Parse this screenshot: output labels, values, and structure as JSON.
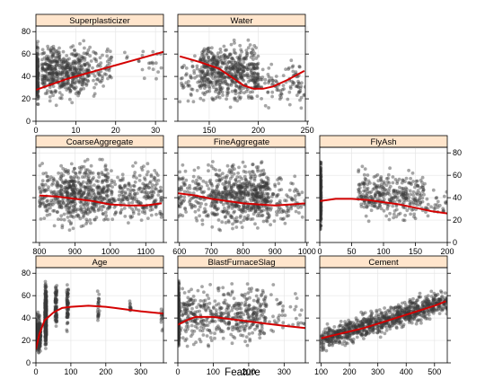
{
  "chart_data": {
    "type": "scatter",
    "xlabel": "Feature",
    "panels": [
      {
        "name": "Superplasticizer",
        "xlim": [
          0,
          32
        ],
        "ylim": [
          0,
          85
        ],
        "xticks": [
          0,
          10,
          20,
          30
        ],
        "yticks": [
          0,
          20,
          40,
          60,
          80
        ],
        "clusters": [
          {
            "x": [
              0,
              0.6
            ],
            "y": [
              2,
              80
            ],
            "n": 170
          },
          {
            "x": [
              1.5,
              12
            ],
            "y": [
              8,
              80
            ],
            "n": 430
          },
          {
            "x": [
              12,
              19
            ],
            "y": [
              15,
              80
            ],
            "n": 100
          },
          {
            "x": [
              22,
              32
            ],
            "y": [
              30,
              76
            ],
            "n": 22
          }
        ],
        "smooth": {
          "x": [
            0,
            4,
            8,
            12,
            16,
            20,
            24,
            28,
            32
          ],
          "y": [
            28,
            33,
            38,
            42,
            46,
            50,
            54,
            58,
            62
          ]
        }
      },
      {
        "name": "Water",
        "xlim": [
          118,
          248
        ],
        "ylim": [
          0,
          85
        ],
        "xticks": [
          150,
          200,
          250
        ],
        "yticks": [],
        "clusters": [
          {
            "x": [
              120,
              140
            ],
            "y": [
              5,
              70
            ],
            "n": 40
          },
          {
            "x": [
              140,
              200
            ],
            "y": [
              5,
              82
            ],
            "n": 560
          },
          {
            "x": [
              200,
              248
            ],
            "y": [
              5,
              62
            ],
            "n": 100
          }
        ],
        "smooth": {
          "x": [
            120,
            140,
            160,
            175,
            185,
            195,
            205,
            215,
            230,
            247
          ],
          "y": [
            58,
            53,
            47,
            38,
            32,
            29,
            29,
            31,
            37,
            45
          ]
        }
      },
      {
        "name": "CoarseAggregate",
        "xlim": [
          790,
          1150
        ],
        "ylim": [
          0,
          85
        ],
        "xticks": [
          800,
          900,
          1000,
          1100
        ],
        "yticks": [],
        "clusters": [
          {
            "x": [
              800,
              860
            ],
            "y": [
              5,
              80
            ],
            "n": 110
          },
          {
            "x": [
              860,
              1000
            ],
            "y": [
              3,
              82
            ],
            "n": 450
          },
          {
            "x": [
              1000,
              1145
            ],
            "y": [
              5,
              80
            ],
            "n": 230
          }
        ],
        "smooth": {
          "x": [
            800,
            850,
            900,
            950,
            1000,
            1050,
            1100,
            1145
          ],
          "y": [
            42,
            41,
            39,
            37,
            34,
            33,
            33,
            35
          ]
        }
      },
      {
        "name": "FineAggregate",
        "xlim": [
          595,
          995
        ],
        "ylim": [
          0,
          85
        ],
        "xticks": [
          600,
          700,
          800,
          900,
          1000
        ],
        "yticks": [],
        "clusters": [
          {
            "x": [
              595,
              700
            ],
            "y": [
              5,
              80
            ],
            "n": 130
          },
          {
            "x": [
              700,
              880
            ],
            "y": [
              3,
              82
            ],
            "n": 560
          },
          {
            "x": [
              880,
              995
            ],
            "y": [
              5,
              70
            ],
            "n": 90
          }
        ],
        "smooth": {
          "x": [
            595,
            650,
            700,
            750,
            800,
            850,
            900,
            950,
            995
          ],
          "y": [
            44,
            42,
            39,
            37,
            35,
            34,
            33,
            34,
            35
          ]
        }
      },
      {
        "name": "FlyAsh",
        "xlim": [
          0,
          200
        ],
        "ylim": [
          0,
          85
        ],
        "xticks": [
          0,
          50,
          100,
          150,
          200
        ],
        "yticks": [
          0,
          20,
          40,
          60,
          80
        ],
        "clusters": [
          {
            "x": [
              0,
              2
            ],
            "y": [
              2,
              82
            ],
            "n": 470
          },
          {
            "x": [
              60,
              165
            ],
            "y": [
              10,
              75
            ],
            "n": 330
          },
          {
            "x": [
              165,
              200
            ],
            "y": [
              10,
              55
            ],
            "n": 30
          }
        ],
        "smooth": {
          "x": [
            0,
            25,
            50,
            75,
            100,
            125,
            150,
            175,
            200
          ],
          "y": [
            37,
            39,
            39,
            38,
            36,
            34,
            31,
            28,
            26
          ]
        }
      },
      {
        "name": "Age",
        "xlim": [
          0,
          365
        ],
        "ylim": [
          0,
          85
        ],
        "xticks": [
          0,
          100,
          200,
          300
        ],
        "yticks": [
          0,
          20,
          40,
          60,
          80
        ],
        "clusters": [
          {
            "x": [
              0,
              14
            ],
            "y": [
              2,
              50
            ],
            "n": 260
          },
          {
            "x": [
              26,
              30
            ],
            "y": [
              5,
              80
            ],
            "n": 420
          },
          {
            "x": [
              55,
              60
            ],
            "y": [
              20,
              80
            ],
            "n": 90
          },
          {
            "x": [
              88,
              93
            ],
            "y": [
              20,
              82
            ],
            "n": 70
          },
          {
            "x": [
              176,
              182
            ],
            "y": [
              25,
              72
            ],
            "n": 25
          },
          {
            "x": [
              268,
              272
            ],
            "y": [
              40,
              60
            ],
            "n": 13
          },
          {
            "x": [
              358,
              365
            ],
            "y": [
              25,
              55
            ],
            "n": 13
          }
        ],
        "smooth": {
          "x": [
            0,
            10,
            25,
            50,
            75,
            100,
            150,
            200,
            250,
            300,
            365
          ],
          "y": [
            12,
            26,
            38,
            45,
            49,
            50,
            51,
            50,
            48,
            46,
            44
          ]
        }
      },
      {
        "name": "BlastFurnaceSlag",
        "xlim": [
          0,
          360
        ],
        "ylim": [
          0,
          85
        ],
        "xticks": [
          0,
          100,
          200,
          300
        ],
        "yticks": [],
        "clusters": [
          {
            "x": [
              0,
              3
            ],
            "y": [
              2,
              82
            ],
            "n": 480
          },
          {
            "x": [
              3,
              250
            ],
            "y": [
              5,
              82
            ],
            "n": 460
          },
          {
            "x": [
              250,
              360
            ],
            "y": [
              10,
              75
            ],
            "n": 40
          }
        ],
        "smooth": {
          "x": [
            0,
            25,
            50,
            100,
            150,
            200,
            250,
            300,
            360
          ],
          "y": [
            34,
            38,
            41,
            41,
            39,
            37,
            35,
            33,
            31
          ]
        }
      },
      {
        "name": "Cement",
        "xlim": [
          95,
          545
        ],
        "ylim": [
          0,
          85
        ],
        "xticks": [
          100,
          200,
          300,
          400,
          500
        ],
        "yticks": [],
        "trend": {
          "slope": 0.078,
          "intercept": 13,
          "spread": 15
        },
        "clusters": [
          {
            "x": [
              100,
              545
            ],
            "y": [
              2,
              82
            ],
            "n": 900
          }
        ],
        "smooth": {
          "x": [
            100,
            150,
            200,
            250,
            300,
            350,
            400,
            450,
            500,
            540
          ],
          "y": [
            22,
            25,
            28,
            31,
            35,
            39,
            43,
            47,
            51,
            55
          ]
        }
      }
    ]
  }
}
